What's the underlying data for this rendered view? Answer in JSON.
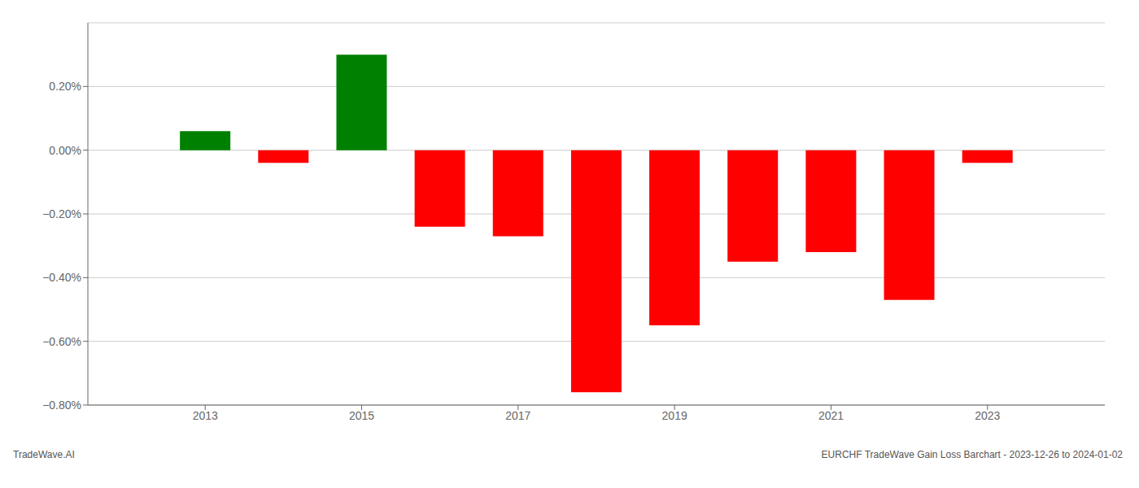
{
  "chart_data": {
    "type": "bar",
    "x": [
      2013,
      2014,
      2015,
      2016,
      2017,
      2018,
      2019,
      2020,
      2021,
      2022,
      2023
    ],
    "values": [
      0.0006,
      -0.0004,
      0.003,
      -0.0024,
      -0.0027,
      -0.0076,
      -0.0055,
      -0.0035,
      -0.0032,
      -0.0047,
      -0.0004
    ],
    "colors": [
      "#008000",
      "#ff0000",
      "#008000",
      "#ff0000",
      "#ff0000",
      "#ff0000",
      "#ff0000",
      "#ff0000",
      "#ff0000",
      "#ff0000",
      "#ff0000"
    ],
    "xlim": [
      2011.5,
      2024.5
    ],
    "xticks": [
      2013,
      2015,
      2017,
      2019,
      2021,
      2023
    ],
    "ylim": [
      -0.008,
      0.004
    ],
    "yticks": [
      {
        "value": -0.008,
        "label": "−0.80%"
      },
      {
        "value": -0.006,
        "label": "−0.60%"
      },
      {
        "value": -0.004,
        "label": "−0.40%"
      },
      {
        "value": -0.002,
        "label": "−0.20%"
      },
      {
        "value": 0.0,
        "label": "0.00%"
      },
      {
        "value": 0.002,
        "label": "0.20%"
      }
    ],
    "grid": true,
    "annotations": [
      "TradeWave.AI",
      "EURCHF TradeWave Gain Loss Barchart - 2023-12-26 to 2024-01-02"
    ]
  }
}
